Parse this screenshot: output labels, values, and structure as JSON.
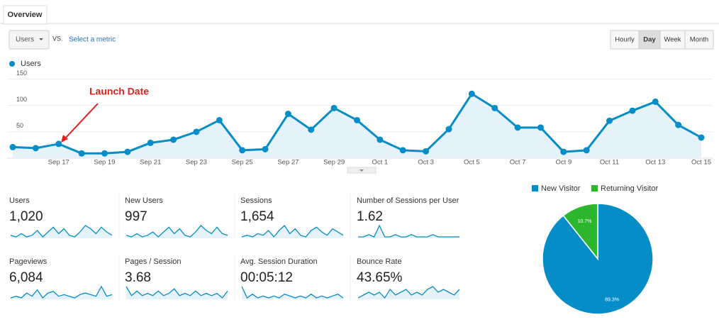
{
  "tab": "Overview",
  "controls": {
    "metric": "Users",
    "vs": "VS.",
    "select": "Select a metric",
    "buttons": [
      "Hourly",
      "Day",
      "Week",
      "Month"
    ],
    "active": "Day"
  },
  "chart_data": [
    {
      "type": "line",
      "categories": [
        null,
        null,
        "Sep 17",
        null,
        "Sep 19",
        null,
        "Sep 21",
        null,
        "Sep 23",
        null,
        "Sep 25",
        null,
        "Sep 27",
        null,
        "Sep 29",
        null,
        "Oct 1",
        null,
        "Oct 3",
        null,
        "Oct 5",
        null,
        "Oct 7",
        null,
        "Oct 9",
        null,
        "Oct 11",
        null,
        "Oct 13",
        null,
        "Oct 15"
      ],
      "series": [
        {
          "name": "Users",
          "color": "#058dc7",
          "values": [
            21,
            19,
            27,
            9,
            9,
            12,
            29,
            35,
            50,
            72,
            15,
            17,
            84,
            54,
            95,
            72,
            35,
            15,
            13,
            55,
            122,
            95,
            58,
            58,
            12,
            15,
            71,
            90,
            107,
            63,
            39
          ]
        }
      ],
      "ylim": [
        0,
        160
      ],
      "yticks": [
        50,
        100,
        150
      ],
      "grid": true,
      "annotation": "Launch Date"
    },
    {
      "type": "pie",
      "categories": [
        "New Visitor",
        "Returning Visitor"
      ],
      "values": [
        89.3,
        10.7
      ],
      "value_labels": [
        "89.3%",
        "10.7%"
      ],
      "colors": [
        "#058dc7",
        "#2db52d"
      ]
    }
  ],
  "metrics": [
    {
      "label": "Users",
      "value": "1,020",
      "spark": [
        3,
        2,
        4,
        2,
        3,
        6,
        2,
        5,
        8,
        4,
        7,
        3,
        2,
        5,
        9,
        7,
        4,
        8,
        5,
        3
      ]
    },
    {
      "label": "New Users",
      "value": "997",
      "spark": [
        3,
        2,
        4,
        2,
        3,
        5,
        2,
        5,
        8,
        4,
        7,
        3,
        2,
        5,
        9,
        6,
        4,
        8,
        4,
        3
      ]
    },
    {
      "label": "Sessions",
      "value": "1,654",
      "spark": [
        2,
        3,
        2,
        4,
        3,
        6,
        2,
        6,
        9,
        4,
        7,
        3,
        2,
        6,
        8,
        5,
        3,
        7,
        5,
        3
      ]
    },
    {
      "label": "Number of Sessions per User",
      "value": "1.62",
      "spark": [
        4,
        4,
        5,
        4,
        9,
        4,
        4,
        5,
        4,
        4,
        5,
        4,
        4,
        4,
        5,
        4,
        4,
        4,
        4,
        4
      ]
    },
    {
      "label": "Pageviews",
      "value": "6,084",
      "spark": [
        2,
        3,
        2,
        5,
        3,
        7,
        2,
        5,
        6,
        3,
        4,
        3,
        2,
        4,
        5,
        4,
        3,
        9,
        3,
        4
      ]
    },
    {
      "label": "Pages / Session",
      "value": "3.68",
      "spark": [
        8,
        4,
        6,
        4,
        5,
        4,
        6,
        4,
        5,
        7,
        4,
        5,
        4,
        6,
        4,
        5,
        4,
        5,
        3,
        6
      ]
    },
    {
      "label": "Avg. Session Duration",
      "value": "00:05:12",
      "spark": [
        9,
        3,
        5,
        3,
        4,
        3,
        4,
        3,
        5,
        4,
        3,
        4,
        3,
        5,
        3,
        4,
        3,
        4,
        5,
        3
      ]
    },
    {
      "label": "Bounce Rate",
      "value": "43.65%",
      "spark": [
        3,
        4,
        5,
        4,
        5,
        3,
        6,
        4,
        5,
        6,
        4,
        5,
        4,
        6,
        7,
        5,
        6,
        5,
        4,
        6
      ]
    }
  ]
}
